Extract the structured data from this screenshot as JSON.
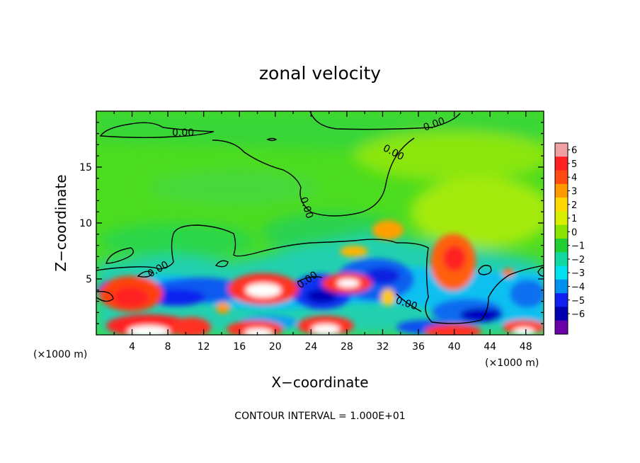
{
  "chart_data": {
    "type": "heatmap",
    "title": "zonal velocity",
    "xlabel": "X−coordinate",
    "ylabel": "Z−coordinate",
    "x_unit": "(×1000 m)",
    "z_unit": "(×1000 m)",
    "xlim": [
      0,
      50
    ],
    "ylim": [
      0,
      20
    ],
    "x_ticks": [
      4,
      8,
      12,
      16,
      20,
      24,
      28,
      32,
      36,
      40,
      44,
      48
    ],
    "x_tick_labels": [
      "4",
      "8",
      "12",
      "16",
      "20",
      "24",
      "28",
      "32",
      "36",
      "40",
      "44",
      "48"
    ],
    "y_ticks": [
      5,
      10,
      15
    ],
    "y_tick_labels": [
      "5",
      "10",
      "15"
    ],
    "contour_note": "CONTOUR INTERVAL = 1.000E+01",
    "contour_label": "0.00",
    "colorbar": {
      "levels": [
        -6,
        -5,
        -4,
        -3,
        -2,
        -1,
        0,
        1,
        2,
        3,
        4,
        5,
        6
      ],
      "labels": [
        "6",
        "5",
        "4",
        "3",
        "2",
        "1",
        "0",
        "−1",
        "−2",
        "−3",
        "−4",
        "−5",
        "−6"
      ],
      "colors": [
        "#f0a0a0",
        "#ff2020",
        "#ff4a10",
        "#ff9900",
        "#ffd800",
        "#d8f000",
        "#88e400",
        "#20d030",
        "#10d8a0",
        "#00e0f0",
        "#0090f0",
        "#1020f0",
        "#0000b0",
        "#6a00a8"
      ]
    },
    "features": [
      {
        "type": "negative-core",
        "x": 9,
        "z": 4.2,
        "value": -5
      },
      {
        "type": "positive-core",
        "x": 18.5,
        "z": 4.0,
        "value": 6
      },
      {
        "type": "positive-core",
        "x": 4.5,
        "z": 3.8,
        "value": 5
      },
      {
        "type": "positive-core",
        "x": 26.5,
        "z": 4.7,
        "value": 6
      },
      {
        "type": "positive-core",
        "x": 40,
        "z": 6.7,
        "value": 4
      },
      {
        "type": "positive-core",
        "x": 32.5,
        "z": 9.5,
        "value": 3
      },
      {
        "type": "negative-core",
        "x": 24.8,
        "z": 3.3,
        "value": -5
      },
      {
        "type": "negative-core",
        "x": 30.5,
        "z": 5.6,
        "value": -4
      },
      {
        "type": "negative-core",
        "x": 39,
        "z": 1.8,
        "value": -4
      },
      {
        "type": "positive-core",
        "x": 47,
        "z": 1.2,
        "value": 6
      }
    ]
  }
}
